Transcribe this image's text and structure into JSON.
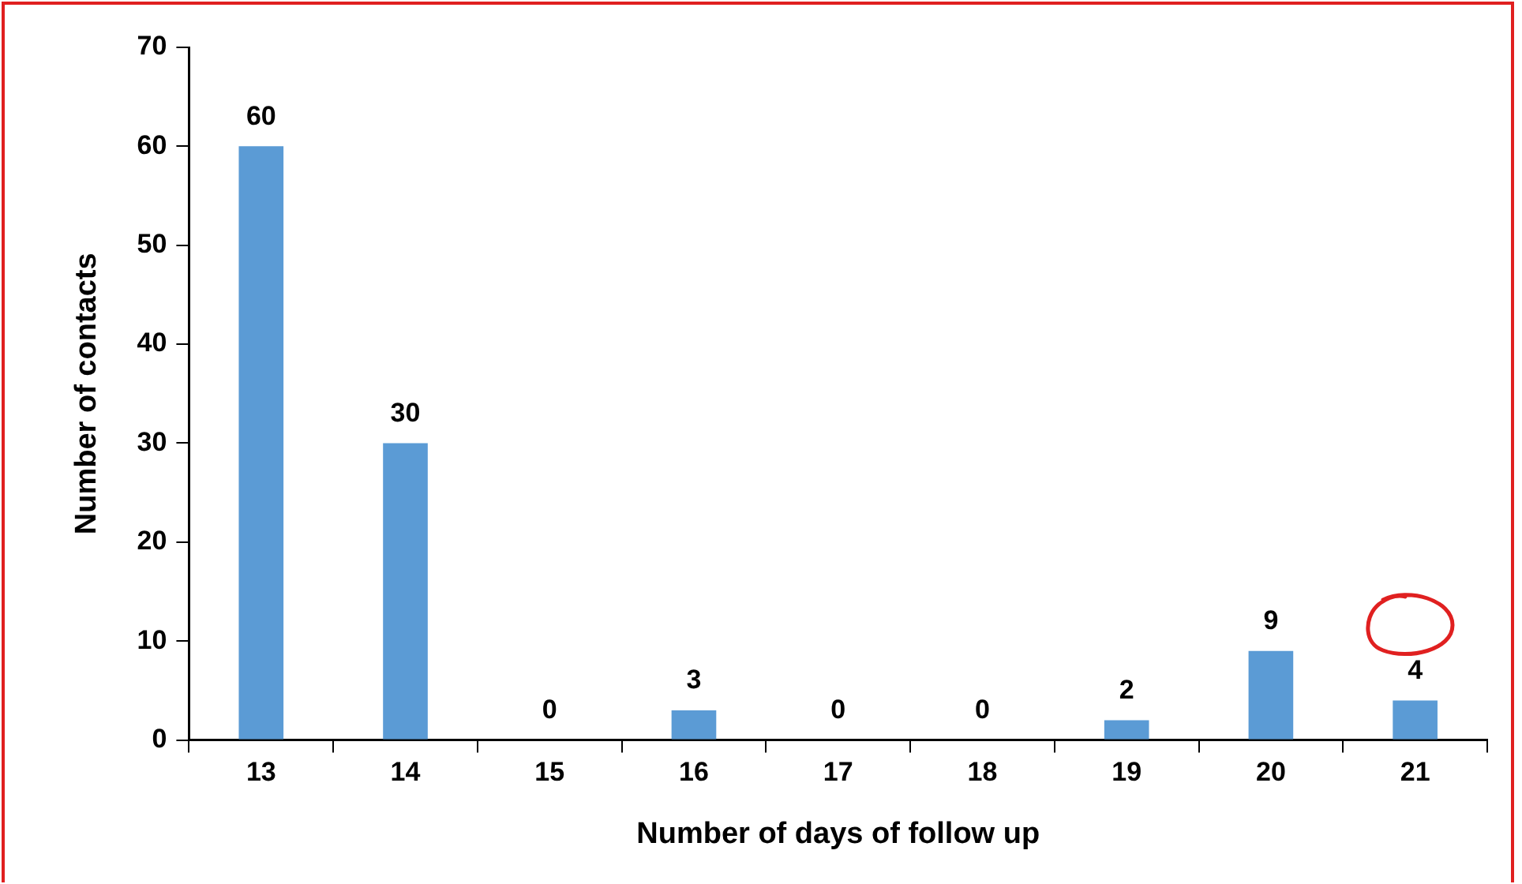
{
  "chart_data": {
    "type": "bar",
    "xlabel": "Number of days of follow up",
    "ylabel": "Number of contacts",
    "categories": [
      "13",
      "14",
      "15",
      "16",
      "17",
      "18",
      "19",
      "20",
      "21"
    ],
    "values": [
      60,
      30,
      0,
      3,
      0,
      0,
      2,
      9,
      4
    ],
    "color": "#5b9bd5",
    "ylim": [
      0,
      70
    ],
    "yticks": [
      0,
      10,
      20,
      30,
      40,
      50,
      60,
      70
    ],
    "grid": false,
    "legend": false,
    "data_labels": true
  }
}
